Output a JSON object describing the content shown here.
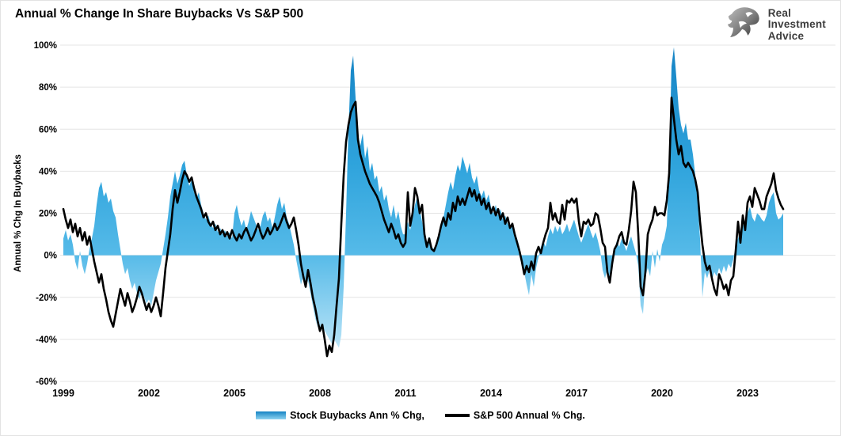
{
  "title": "Annual % Change In Share Buybacks Vs S&P 500",
  "logo": {
    "line1": "Real",
    "line2": "Investment",
    "line3": "Advice",
    "icon": "eagle-icon",
    "text_color": "#3d3d3d"
  },
  "legend": {
    "buybacks_label": "Stock Buybacks Ann % Chg,",
    "sp500_label": "S&P 500 Annual % Chg."
  },
  "chart_data": {
    "type": "area",
    "title": "Annual % Change In Share Buybacks Vs S&P 500",
    "ylabel": "Annual % Chg In Buybacks",
    "xlabel": "",
    "ylim": [
      -60,
      100
    ],
    "grid": "horizontal",
    "legend_position": "bottom",
    "y_tick_values": [
      100,
      80,
      60,
      40,
      20,
      0,
      -20,
      -40,
      -60
    ],
    "y_tick_labels": [
      "100%",
      "80%",
      "60%",
      "40%",
      "20%",
      "0%",
      "-20%",
      "-40%",
      "-60%"
    ],
    "x_tick_labels": [
      "1999",
      "2002",
      "2005",
      "2008",
      "2011",
      "2014",
      "2017",
      "2020",
      "2023"
    ],
    "x_start_year": 1999,
    "x_interval_months": 1,
    "colors": {
      "area_top": "#1583c4",
      "area_mid": "#3fafe2",
      "area_low": "#8ed3f0",
      "area_bottom": "#ddf2fc",
      "line": "#000000",
      "gridline": "#e4e4e4"
    },
    "series": [
      {
        "name": "Stock Buybacks Ann % Chg,",
        "type": "area",
        "values": [
          8,
          12,
          7,
          10,
          5,
          -3,
          -7,
          2,
          -5,
          -9,
          -4,
          3,
          8,
          14,
          24,
          32,
          35,
          28,
          30,
          25,
          27,
          21,
          18,
          10,
          3,
          -4,
          -9,
          -6,
          -12,
          -16,
          -13,
          -18,
          -21,
          -17,
          -20,
          -23,
          -21,
          -24,
          -18,
          -12,
          -8,
          -4,
          3,
          10,
          18,
          28,
          34,
          40,
          34,
          38,
          43,
          45,
          38,
          33,
          36,
          30,
          27,
          30,
          24,
          20,
          17,
          19,
          15,
          13,
          15,
          11,
          13,
          10,
          12,
          9,
          11,
          8,
          20,
          24,
          18,
          14,
          17,
          12,
          16,
          21,
          18,
          15,
          12,
          14,
          19,
          21,
          16,
          18,
          13,
          18,
          24,
          28,
          22,
          25,
          18,
          15,
          10,
          5,
          -2,
          -8,
          -14,
          -10,
          -16,
          -12,
          -18,
          -24,
          -30,
          -34,
          -35,
          -33,
          -36,
          -38,
          -40,
          -42,
          -40,
          -42,
          -44,
          -38,
          -15,
          20,
          60,
          88,
          95,
          75,
          58,
          52,
          58,
          46,
          52,
          40,
          44,
          36,
          38,
          30,
          33,
          26,
          29,
          22,
          18,
          24,
          17,
          21,
          14,
          10,
          10,
          16,
          12,
          18,
          24,
          28,
          22,
          16,
          10,
          6,
          9,
          4,
          3,
          6,
          10,
          14,
          18,
          24,
          30,
          35,
          31,
          38,
          43,
          40,
          47,
          43,
          39,
          44,
          37,
          34,
          38,
          31,
          28,
          31,
          26,
          29,
          23,
          20,
          24,
          19,
          22,
          17,
          19,
          15,
          13,
          15,
          11,
          8,
          4,
          -2,
          -8,
          -14,
          -19,
          -9,
          -15,
          -6,
          -1,
          4,
          7,
          4,
          9,
          13,
          10,
          14,
          11,
          14,
          10,
          12,
          15,
          11,
          14,
          17,
          13,
          9,
          6,
          9,
          12,
          15,
          11,
          8,
          11,
          7,
          2,
          -7,
          -11,
          -6,
          -13,
          -4,
          3,
          7,
          4,
          8,
          5,
          2,
          6,
          9,
          5,
          1,
          -5,
          -24,
          -28,
          -10,
          -6,
          -10,
          2,
          -6,
          3,
          -3,
          5,
          8,
          14,
          45,
          90,
          99,
          85,
          70,
          62,
          58,
          63,
          55,
          55,
          48,
          38,
          25,
          8,
          -20,
          -8,
          -11,
          -7,
          -12,
          -8,
          -10,
          -6,
          -9,
          -5,
          -8,
          -4,
          -6,
          -2,
          4,
          8,
          12,
          14,
          16,
          20,
          23,
          18,
          16,
          20,
          19,
          17,
          16,
          19,
          25,
          28,
          30,
          20,
          17,
          18,
          20
        ]
      },
      {
        "name": "S&P 500 Annual % Chg.",
        "type": "line",
        "values": [
          22,
          17,
          13,
          17,
          11,
          15,
          9,
          13,
          7,
          11,
          5,
          9,
          3,
          -3,
          -8,
          -13,
          -9,
          -16,
          -21,
          -27,
          -31,
          -34,
          -28,
          -22,
          -16,
          -20,
          -24,
          -18,
          -22,
          -27,
          -24,
          -20,
          -15,
          -18,
          -22,
          -26,
          -23,
          -27,
          -24,
          -20,
          -24,
          -29,
          -18,
          -6,
          2,
          10,
          22,
          31,
          25,
          30,
          36,
          40,
          38,
          35,
          37,
          32,
          28,
          25,
          22,
          18,
          20,
          16,
          14,
          16,
          12,
          14,
          10,
          12,
          9,
          11,
          8,
          12,
          9,
          7,
          10,
          8,
          11,
          13,
          10,
          7,
          9,
          12,
          15,
          11,
          8,
          10,
          13,
          10,
          12,
          15,
          12,
          14,
          17,
          20,
          16,
          13,
          15,
          18,
          12,
          5,
          -4,
          -10,
          -15,
          -7,
          -13,
          -20,
          -25,
          -31,
          -36,
          -33,
          -40,
          -48,
          -43,
          -46,
          -38,
          -24,
          -11,
          15,
          38,
          54,
          62,
          68,
          71,
          73,
          55,
          48,
          44,
          40,
          37,
          34,
          32,
          30,
          28,
          25,
          21,
          17,
          14,
          11,
          15,
          12,
          8,
          10,
          6,
          4,
          6,
          30,
          14,
          20,
          32,
          28,
          20,
          24,
          10,
          4,
          8,
          3,
          2,
          5,
          9,
          14,
          18,
          14,
          20,
          17,
          25,
          21,
          28,
          24,
          27,
          24,
          28,
          32,
          28,
          31,
          26,
          29,
          24,
          27,
          22,
          25,
          20,
          23,
          19,
          22,
          17,
          20,
          15,
          18,
          13,
          15,
          10,
          6,
          2,
          -3,
          -9,
          -5,
          -8,
          -3,
          -7,
          1,
          4,
          1,
          6,
          10,
          13,
          25,
          17,
          20,
          16,
          15,
          24,
          17,
          26,
          25,
          27,
          25,
          27,
          16,
          9,
          16,
          15,
          17,
          14,
          15,
          20,
          19,
          13,
          6,
          4,
          -8,
          -13,
          -4,
          3,
          5,
          9,
          11,
          6,
          5,
          12,
          21,
          35,
          30,
          10,
          -15,
          -19,
          -8,
          10,
          14,
          17,
          23,
          19,
          20,
          20,
          19,
          26,
          39,
          75,
          65,
          55,
          48,
          52,
          44,
          42,
          44,
          42,
          40,
          36,
          30,
          16,
          5,
          -3,
          -7,
          -5,
          -11,
          -16,
          -19,
          -9,
          -12,
          -16,
          -14,
          -19,
          -12,
          -10,
          2,
          16,
          6,
          19,
          12,
          25,
          28,
          23,
          32,
          29,
          26,
          22,
          22,
          28,
          31,
          34,
          39,
          31,
          27,
          24,
          22
        ]
      }
    ]
  }
}
